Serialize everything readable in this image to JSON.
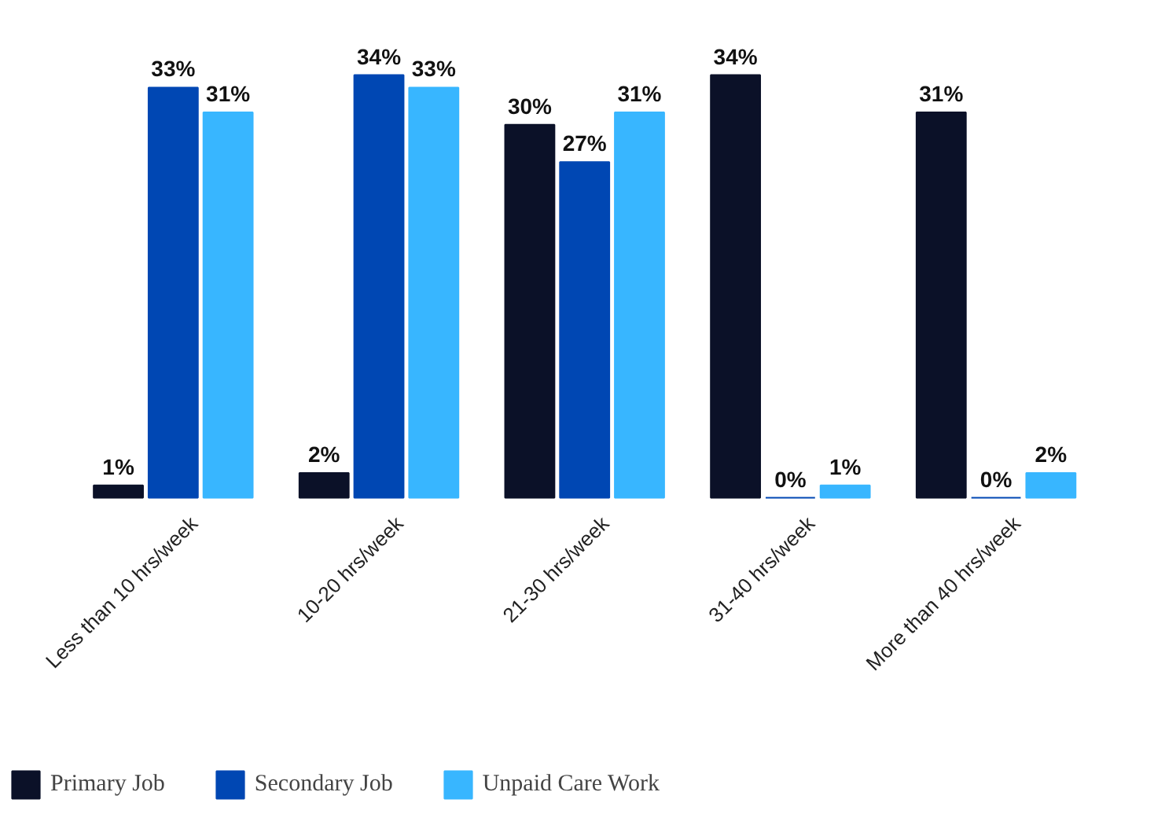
{
  "chart_data": {
    "type": "bar",
    "categories": [
      "Less than 10 hrs/week",
      "10-20 hrs/week",
      "21-30 hrs/week",
      "31-40 hrs/week",
      "More than 40 hrs/week"
    ],
    "series": [
      {
        "name": "Primary Job",
        "color": "#0b1128",
        "values": [
          1,
          2,
          30,
          34,
          31
        ],
        "value_labels": [
          "1%",
          "2%",
          "30%",
          "34%",
          "31%"
        ]
      },
      {
        "name": "Secondary Job",
        "color": "#0047b3",
        "values": [
          33,
          34,
          27,
          0,
          0
        ],
        "value_labels": [
          "33%",
          "34%",
          "27%",
          "0%",
          "0%"
        ]
      },
      {
        "name": "Unpaid Care Work",
        "color": "#38b6ff",
        "values": [
          31,
          33,
          31,
          1,
          2
        ],
        "value_labels": [
          "31%",
          "33%",
          "31%",
          "1%",
          "2%"
        ]
      }
    ],
    "legend": "bottom"
  }
}
